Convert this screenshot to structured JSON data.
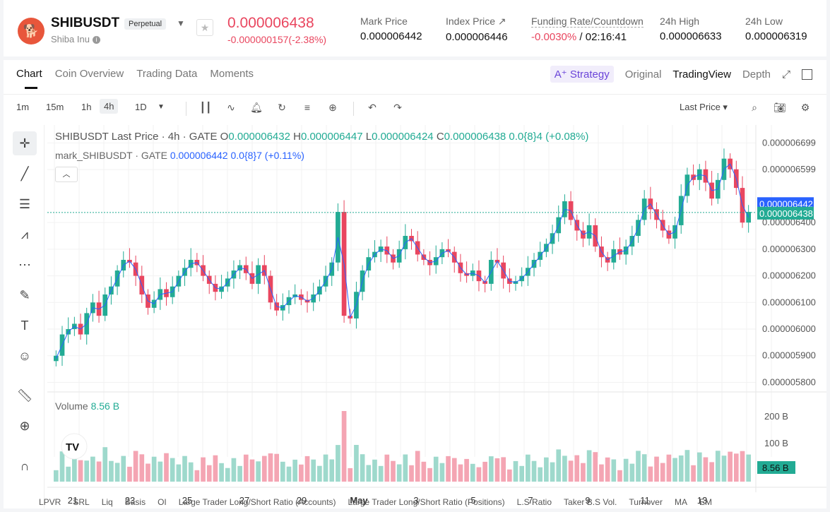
{
  "header": {
    "pair": "SHIBUSDT",
    "contract_type": "Perpetual",
    "coin_name": "Shiba Inu",
    "last_price": "0.000006438",
    "change": "-0.000000157(-2.38%)",
    "stats": [
      {
        "label": "Mark Price",
        "value": "0.000006442"
      },
      {
        "label": "Index Price ↗",
        "value": "0.000006446"
      },
      {
        "label": "Funding Rate/Countdown",
        "value_neg": "-0.0030%",
        "value": " / 02:16:41"
      },
      {
        "label": "24h High",
        "value": "0.000006633"
      },
      {
        "label": "24h Low",
        "value": "0.000006319"
      }
    ]
  },
  "tabs": [
    "Chart",
    "Coin Overview",
    "Trading Data",
    "Moments"
  ],
  "right_tabs": {
    "strategy": "Strategy",
    "original": "Original",
    "tradingview": "TradingView",
    "depth": "Depth"
  },
  "timeframes": [
    "1m",
    "15m",
    "1h",
    "4h",
    "1D"
  ],
  "selected_timeframe": "4h",
  "price_source": "Last Price",
  "legend": {
    "title": "SHIBUSDT Last Price · 4h · GATE",
    "o": "0.000006432",
    "h": "0.000006447",
    "l": "0.000006424",
    "c": "0.000006438",
    "chg": "0.0{8}4 (+0.08%)",
    "mark_label": "mark_SHIBUSDT · GATE",
    "mark_value": "0.000006442",
    "mark_chg": "0.0{8}7 (+0.11%)"
  },
  "volume": {
    "label": "Volume",
    "value": "8.56 B"
  },
  "bottom_indicators": [
    "LPVR",
    "SRL",
    "Liq",
    "Basis",
    "OI",
    "Large Trader Long/Short Ratio (Accounts)",
    "Large Trader Long/Short Ratio (Positions)",
    "L.S Ratio",
    "Taker B.S Vol.",
    "Turnover",
    "MA",
    "EM"
  ],
  "colors": {
    "up": "#22ab94",
    "down": "#e9465f",
    "mark": "#2962ff"
  },
  "chart_data": {
    "type": "candlestick",
    "price_axis_ticks": [
      "0.000006699",
      "0.000006599",
      "0.000006400",
      "0.000006300",
      "0.000006200",
      "0.000006100",
      "0.000006000",
      "0.000005900",
      "0.000005800"
    ],
    "price_badges": {
      "mark": "0.000006442",
      "last": "0.000006438"
    },
    "volume_axis_ticks": [
      "200 B",
      "100 B"
    ],
    "volume_badge": "8.56 B",
    "x_ticks": [
      "21",
      "23",
      "25",
      "27",
      "29",
      "May",
      "3",
      "5",
      "7",
      "9",
      "11",
      "13"
    ],
    "ylim": [
      5.78e-06,
      6.7e-06
    ],
    "candles_close": [
      5.9,
      5.98,
      6.0,
      6.02,
      5.98,
      6.06,
      6.1,
      6.05,
      6.13,
      6.16,
      6.22,
      6.26,
      6.25,
      6.2,
      6.13,
      6.08,
      6.11,
      6.15,
      6.12,
      6.16,
      6.2,
      6.23,
      6.26,
      6.24,
      6.2,
      6.17,
      6.14,
      6.16,
      6.19,
      6.22,
      6.24,
      6.21,
      6.17,
      6.24,
      6.2,
      6.1,
      6.07,
      6.09,
      6.12,
      6.13,
      6.11,
      6.1,
      6.13,
      6.16,
      6.2,
      6.25,
      6.44,
      6.05,
      6.04,
      6.14,
      6.22,
      6.27,
      6.29,
      6.31,
      6.28,
      6.25,
      6.3,
      6.35,
      6.33,
      6.28,
      6.26,
      6.24,
      6.27,
      6.3,
      6.29,
      6.25,
      6.21,
      6.2,
      6.22,
      6.18,
      6.17,
      6.26,
      6.25,
      6.19,
      6.17,
      6.18,
      6.2,
      6.23,
      6.26,
      6.29,
      6.32,
      6.36,
      6.42,
      6.48,
      6.41,
      6.37,
      6.34,
      6.39,
      6.31,
      6.27,
      6.25,
      6.3,
      6.28,
      6.31,
      6.35,
      6.41,
      6.49,
      6.45,
      6.41,
      6.37,
      6.34,
      6.39,
      6.5,
      6.58,
      6.56,
      6.6,
      6.55,
      6.49,
      6.56,
      6.64,
      6.6,
      6.53,
      6.4,
      6.44
    ]
  }
}
